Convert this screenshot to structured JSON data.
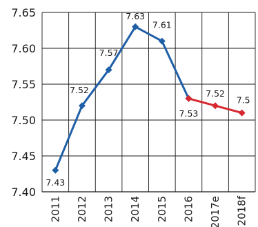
{
  "chart_data": {
    "type": "line",
    "title": "",
    "xlabel": "",
    "ylabel": "",
    "categories": [
      "2011",
      "2012",
      "2013",
      "2014",
      "2015",
      "2016",
      "2017e",
      "2018f"
    ],
    "ylim": [
      7.4,
      7.65
    ],
    "yticks": [
      "7.40",
      "7.45",
      "7.50",
      "7.55",
      "7.60",
      "7.65"
    ],
    "grid": true,
    "legend": "none",
    "series": [
      {
        "color": "#1f5fa6",
        "values": [
          7.43,
          7.52,
          7.57,
          7.63,
          7.61,
          7.53,
          null,
          null
        ],
        "labels": [
          "7.43",
          "7.52",
          "7.57",
          "7.63",
          "7.61",
          "7.53",
          null,
          null
        ]
      },
      {
        "color": "#d7282f",
        "values": [
          null,
          null,
          null,
          null,
          null,
          7.53,
          7.52,
          7.51
        ],
        "labels": [
          null,
          null,
          null,
          null,
          null,
          null,
          "7.52",
          "7.5"
        ]
      }
    ]
  }
}
